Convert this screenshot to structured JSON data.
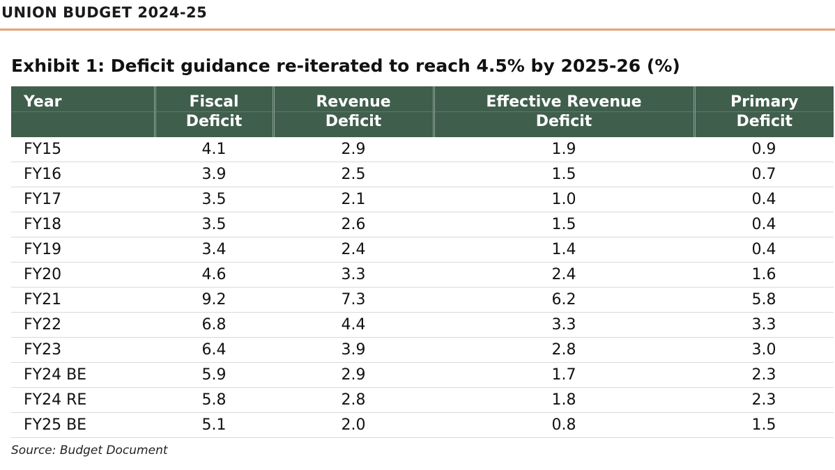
{
  "header": {
    "title": "UNION BUDGET 2024-25"
  },
  "exhibit": {
    "title": "Exhibit 1: Deficit guidance re-iterated to reach 4.5% by 2025-26 (%)"
  },
  "table": {
    "headers": [
      {
        "line1": "Year",
        "line2": ""
      },
      {
        "line1": "Fiscal",
        "line2": "Deficit"
      },
      {
        "line1": "Revenue",
        "line2": "Deficit"
      },
      {
        "line1": "Effective Revenue",
        "line2": "Deficit"
      },
      {
        "line1": "Primary",
        "line2": "Deficit"
      }
    ],
    "rows": [
      [
        "FY15",
        "4.1",
        "2.9",
        "1.9",
        "0.9"
      ],
      [
        "FY16",
        "3.9",
        "2.5",
        "1.5",
        "0.7"
      ],
      [
        "FY17",
        "3.5",
        "2.1",
        "1.0",
        "0.4"
      ],
      [
        "FY18",
        "3.5",
        "2.6",
        "1.5",
        "0.4"
      ],
      [
        "FY19",
        "3.4",
        "2.4",
        "1.4",
        "0.4"
      ],
      [
        "FY20",
        "4.6",
        "3.3",
        "2.4",
        "1.6"
      ],
      [
        "FY21",
        "9.2",
        "7.3",
        "6.2",
        "5.8"
      ],
      [
        "FY22",
        "6.8",
        "4.4",
        "3.3",
        "3.3"
      ],
      [
        "FY23",
        "6.4",
        "3.9",
        "2.8",
        "3.0"
      ],
      [
        "FY24 BE",
        "5.9",
        "2.9",
        "1.7",
        "2.3"
      ],
      [
        "FY24 RE",
        "5.8",
        "2.8",
        "1.8",
        "2.3"
      ],
      [
        "FY25 BE",
        "5.1",
        "2.0",
        "0.8",
        "1.5"
      ]
    ]
  },
  "source": "Source: Budget Document",
  "colors": {
    "header_bg": "#405e4c",
    "header_rule": "#e8a274"
  }
}
